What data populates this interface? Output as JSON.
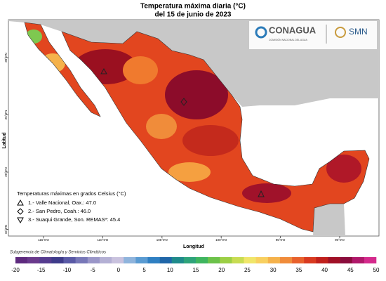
{
  "header": {
    "title": "Temperatura máxima diaria (°C)",
    "subtitle": "del 15 de junio de 2023"
  },
  "logos": {
    "conagua": "CONAGUA",
    "conagua_sub": "COMISIÓN NACIONAL DEL AGUA",
    "smn": "SMN"
  },
  "axes": {
    "x_label": "Longitud",
    "y_label": "Latitud",
    "lon_ticks": [
      "115°0'O",
      "110°0'O",
      "105°0'O",
      "100°0'O",
      "95°0'O",
      "90°0'O"
    ],
    "lat_ticks": [
      "30°0'N",
      "25°0'N",
      "20°0'N",
      "15°0'N"
    ]
  },
  "legend": {
    "title": "Temperaturas máximas en grados Celsius (°C)",
    "items": [
      "1.- Valle Nacional, Oax.: 47.0",
      "2.- San Pedro, Coah.: 46.0",
      "3.- Suaqui Grande, Son. REMAS*: 45.4"
    ]
  },
  "footer": "Subgerencia de Climatología y Servicios Climáticos",
  "colorbar": {
    "labels": [
      -20,
      -15,
      -10,
      -5,
      0,
      5,
      10,
      15,
      20,
      25,
      30,
      35,
      40,
      45,
      50
    ],
    "colors": [
      "#5e2a7e",
      "#6a3a8c",
      "#553c8f",
      "#3e3b8a",
      "#5a5aa6",
      "#7878b8",
      "#9a96c8",
      "#b4b0d4",
      "#c9c2de",
      "#8fb4dc",
      "#5a9bd2",
      "#2f7fc2",
      "#2066a8",
      "#1f8a8a",
      "#2ea37a",
      "#3fb55f",
      "#6cc24a",
      "#9ccf45",
      "#c8dc52",
      "#f0e66a",
      "#f8d060",
      "#f5b24b",
      "#f08c3a",
      "#e8612c",
      "#d83a20",
      "#c0201c",
      "#a01026",
      "#8a0c3c",
      "#b0186a",
      "#d42a8c"
    ]
  }
}
